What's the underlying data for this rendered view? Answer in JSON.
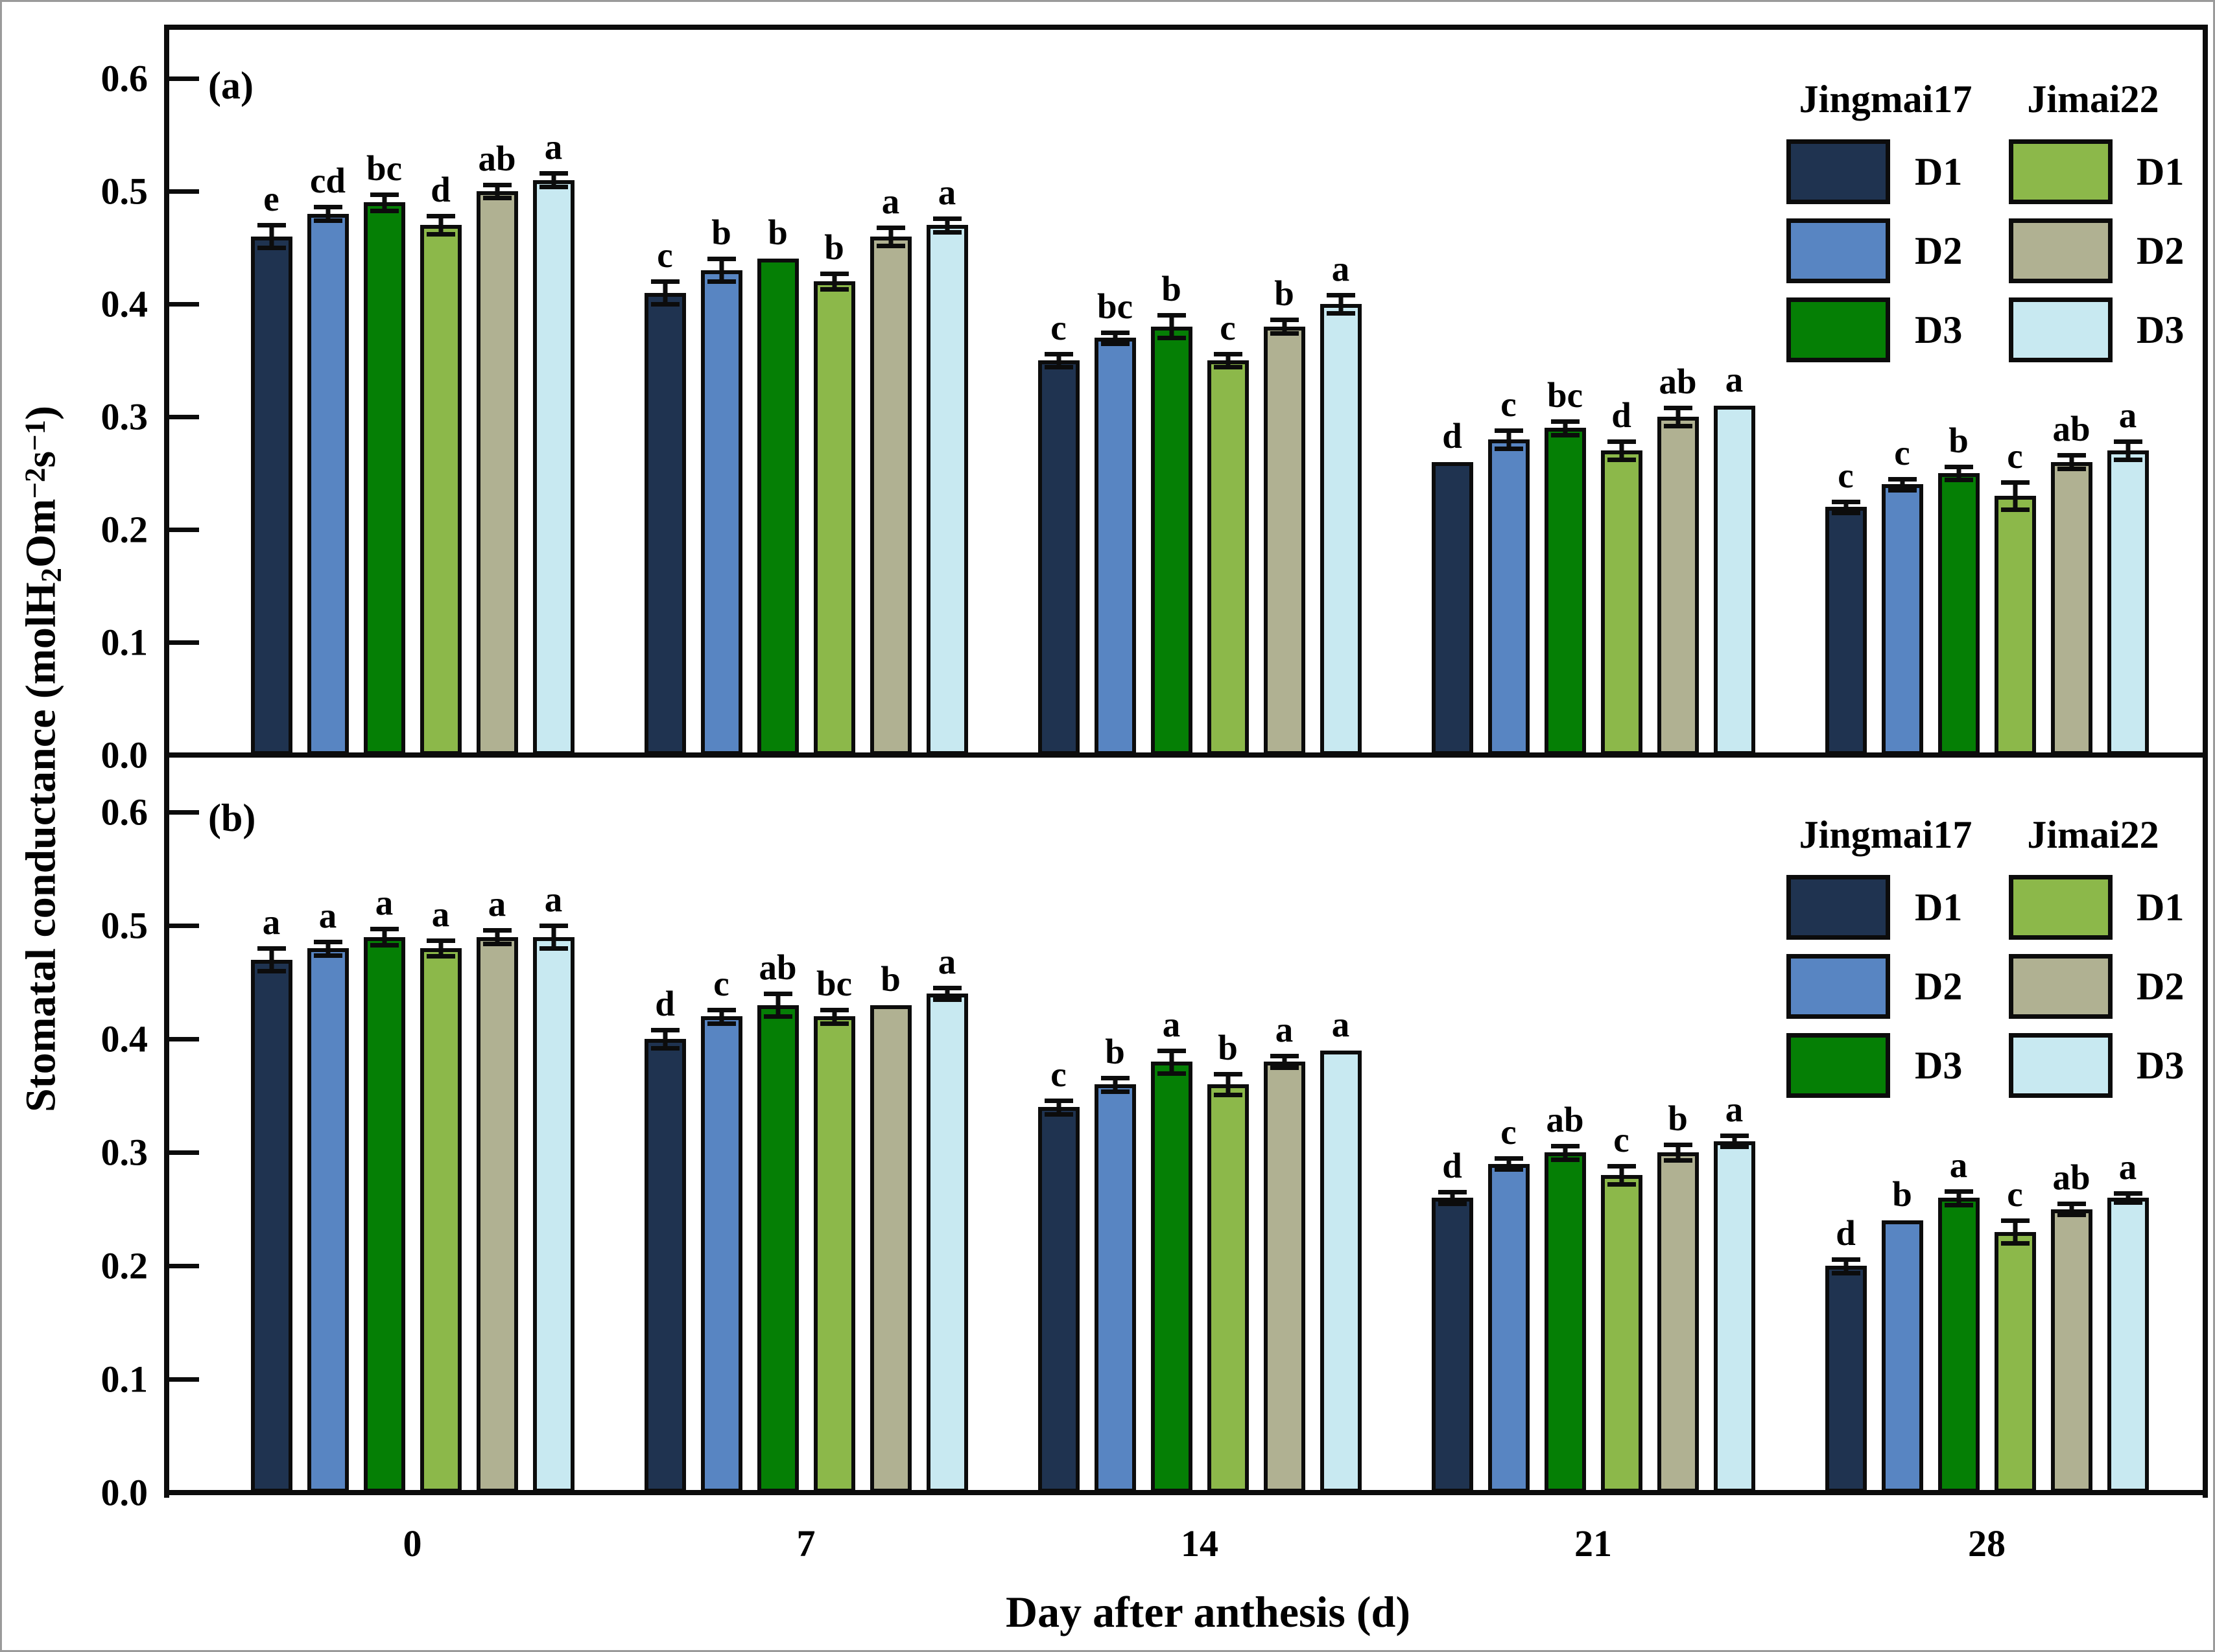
{
  "figure": {
    "x_axis_title": "Day after anthesis (d)",
    "y_axis_title_segments": [
      {
        "t": "Stomatal conductance (molH"
      },
      {
        "t": "2",
        "sub": true
      },
      {
        "t": "Om"
      },
      {
        "t": "−2",
        "sup": true
      },
      {
        "t": "s"
      },
      {
        "t": "−1",
        "sup": true
      },
      {
        "t": ")"
      }
    ],
    "y_tick_labels": [
      "0.0",
      "0.1",
      "0.2",
      "0.3",
      "0.4",
      "0.5",
      "0.6"
    ],
    "x_tick_labels": [
      "0",
      "7",
      "14",
      "21",
      "28"
    ]
  },
  "legend": {
    "columns": [
      {
        "header": "Jingmai17",
        "items": [
          {
            "label": "D1",
            "color": "#1f3350"
          },
          {
            "label": "D2",
            "color": "#5885c2"
          },
          {
            "label": "D3",
            "color": "#057f05"
          }
        ]
      },
      {
        "header": "Jimai22",
        "items": [
          {
            "label": "D1",
            "color": "#8cb84a"
          },
          {
            "label": "D2",
            "color": "#b0b192"
          },
          {
            "label": "D3",
            "color": "#c8e9f1"
          }
        ]
      }
    ]
  },
  "chart_data": [
    {
      "type": "bar",
      "panel": "(a)",
      "categories": [
        "0",
        "7",
        "14",
        "21",
        "28"
      ],
      "xlabel": "Day after anthesis (d)",
      "ylabel": "Stomatal conductance (molH2Om-2s-1)",
      "ylim": [
        0,
        0.648
      ],
      "yticks": [
        0.0,
        0.1,
        0.2,
        0.3,
        0.4,
        0.5,
        0.6
      ],
      "grid": false,
      "legend_position": "upper right",
      "series": [
        {
          "name": "Jingmai17 D1",
          "color": "#1f3350",
          "values": [
            0.46,
            0.41,
            0.35,
            0.26,
            0.22
          ],
          "errors": [
            0.01,
            0.01,
            0.006,
            0,
            0.005
          ],
          "letters": [
            "e",
            "c",
            "c",
            "d",
            "c"
          ]
        },
        {
          "name": "Jingmai17 D2",
          "color": "#5885c2",
          "values": [
            0.48,
            0.43,
            0.37,
            0.28,
            0.24
          ],
          "errors": [
            0.006,
            0.01,
            0.005,
            0.008,
            0.005
          ],
          "letters": [
            "cd",
            "b",
            "bc",
            "c",
            "c"
          ]
        },
        {
          "name": "Jingmai17 D3",
          "color": "#057f05",
          "values": [
            0.49,
            0.44,
            0.38,
            0.29,
            0.25
          ],
          "errors": [
            0.007,
            0,
            0.01,
            0.006,
            0.006
          ],
          "letters": [
            "bc",
            "b",
            "b",
            "bc",
            "b"
          ]
        },
        {
          "name": "Jimai22 D1",
          "color": "#8cb84a",
          "values": [
            0.47,
            0.42,
            0.35,
            0.27,
            0.23
          ],
          "errors": [
            0.008,
            0.007,
            0.006,
            0.008,
            0.012
          ],
          "letters": [
            "d",
            "b",
            "c",
            "d",
            "c"
          ]
        },
        {
          "name": "Jimai22 D2",
          "color": "#b0b192",
          "values": [
            0.5,
            0.46,
            0.38,
            0.3,
            0.26
          ],
          "errors": [
            0.006,
            0.008,
            0.006,
            0.008,
            0.006
          ],
          "letters": [
            "ab",
            "a",
            "b",
            "ab",
            "ab"
          ]
        },
        {
          "name": "Jimai22 D3",
          "color": "#c8e9f1",
          "values": [
            0.51,
            0.47,
            0.4,
            0.31,
            0.27
          ],
          "errors": [
            0.006,
            0.006,
            0.008,
            0,
            0.008
          ],
          "letters": [
            "a",
            "a",
            "a",
            "a",
            "a"
          ]
        }
      ]
    },
    {
      "type": "bar",
      "panel": "(b)",
      "categories": [
        "0",
        "7",
        "14",
        "21",
        "28"
      ],
      "xlabel": "Day after anthesis (d)",
      "ylabel": "Stomatal conductance (molH2Om-2s-1)",
      "ylim": [
        0,
        0.648
      ],
      "yticks": [
        0.0,
        0.1,
        0.2,
        0.3,
        0.4,
        0.5,
        0.6
      ],
      "grid": false,
      "legend_position": "upper right",
      "series": [
        {
          "name": "Jingmai17 D1",
          "color": "#1f3350",
          "values": [
            0.47,
            0.4,
            0.34,
            0.26,
            0.2
          ],
          "errors": [
            0.01,
            0.008,
            0.006,
            0.005,
            0.006
          ],
          "letters": [
            "a",
            "d",
            "c",
            "d",
            "d"
          ]
        },
        {
          "name": "Jingmai17 D2",
          "color": "#5885c2",
          "values": [
            0.48,
            0.42,
            0.36,
            0.29,
            0.24
          ],
          "errors": [
            0.006,
            0.006,
            0.006,
            0.005,
            0
          ],
          "letters": [
            "a",
            "c",
            "b",
            "c",
            "b"
          ]
        },
        {
          "name": "Jingmai17 D3",
          "color": "#057f05",
          "values": [
            0.49,
            0.43,
            0.38,
            0.3,
            0.26
          ],
          "errors": [
            0.007,
            0.01,
            0.01,
            0.006,
            0.006
          ],
          "letters": [
            "a",
            "ab",
            "a",
            "ab",
            "a"
          ]
        },
        {
          "name": "Jimai22 D1",
          "color": "#8cb84a",
          "values": [
            0.48,
            0.42,
            0.36,
            0.28,
            0.23
          ],
          "errors": [
            0.007,
            0.006,
            0.009,
            0.008,
            0.01
          ],
          "letters": [
            "a",
            "bc",
            "b",
            "c",
            "c"
          ]
        },
        {
          "name": "Jimai22 D2",
          "color": "#b0b192",
          "values": [
            0.49,
            0.43,
            0.38,
            0.3,
            0.25
          ],
          "errors": [
            0.006,
            0,
            0.005,
            0.007,
            0.005
          ],
          "letters": [
            "a",
            "b",
            "a",
            "b",
            "ab"
          ]
        },
        {
          "name": "Jimai22 D3",
          "color": "#c8e9f1",
          "values": [
            0.49,
            0.44,
            0.39,
            0.31,
            0.26
          ],
          "errors": [
            0.01,
            0.005,
            0,
            0.005,
            0.004
          ],
          "letters": [
            "a",
            "a",
            "a",
            "a",
            "a"
          ]
        }
      ]
    }
  ]
}
